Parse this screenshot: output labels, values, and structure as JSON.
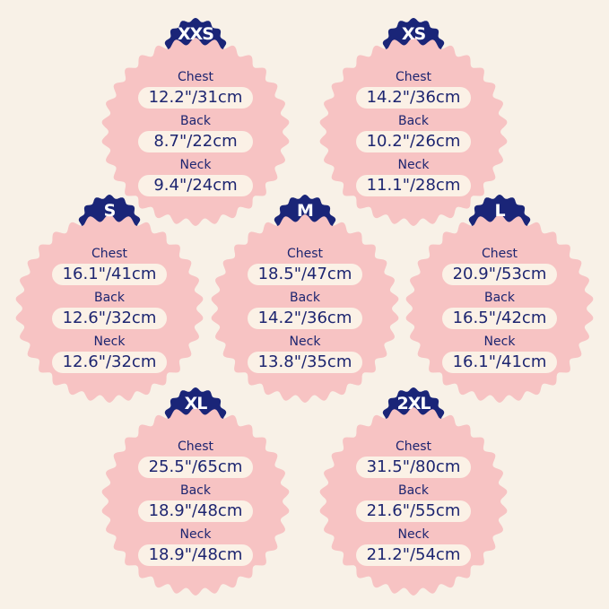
{
  "colors": {
    "background": "#f8f1e7",
    "badge": "#f7c3c3",
    "size_tag": "#1a2578",
    "text": "#1d2570",
    "pill": "#fbf1e6"
  },
  "sizes": [
    {
      "size": "XXS",
      "rows": [
        {
          "label": "Chest",
          "value": "12.2\"/31cm"
        },
        {
          "label": "Back",
          "value": "8.7\"/22cm"
        },
        {
          "label": "Neck",
          "value": "9.4\"/24cm"
        }
      ]
    },
    {
      "size": "XS",
      "rows": [
        {
          "label": "Chest",
          "value": "14.2\"/36cm"
        },
        {
          "label": "Back",
          "value": "10.2\"/26cm"
        },
        {
          "label": "Neck",
          "value": "11.1\"/28cm"
        }
      ]
    },
    {
      "size": "S",
      "rows": [
        {
          "label": "Chest",
          "value": "16.1\"/41cm"
        },
        {
          "label": "Back",
          "value": "12.6\"/32cm"
        },
        {
          "label": "Neck",
          "value": "12.6\"/32cm"
        }
      ]
    },
    {
      "size": "M",
      "rows": [
        {
          "label": "Chest",
          "value": "18.5\"/47cm"
        },
        {
          "label": "Back",
          "value": "14.2\"/36cm"
        },
        {
          "label": "Neck",
          "value": "13.8\"/35cm"
        }
      ]
    },
    {
      "size": "L",
      "rows": [
        {
          "label": "Chest",
          "value": "20.9\"/53cm"
        },
        {
          "label": "Back",
          "value": "16.5\"/42cm"
        },
        {
          "label": "Neck",
          "value": "16.1\"/41cm"
        }
      ]
    },
    {
      "size": "XL",
      "rows": [
        {
          "label": "Chest",
          "value": "25.5\"/65cm"
        },
        {
          "label": "Back",
          "value": "18.9\"/48cm"
        },
        {
          "label": "Neck",
          "value": "18.9\"/48cm"
        }
      ]
    },
    {
      "size": "2XL",
      "rows": [
        {
          "label": "Chest",
          "value": "31.5\"/80cm"
        },
        {
          "label": "Back",
          "value": "21.6\"/55cm"
        },
        {
          "label": "Neck",
          "value": "21.2\"/54cm"
        }
      ]
    }
  ]
}
